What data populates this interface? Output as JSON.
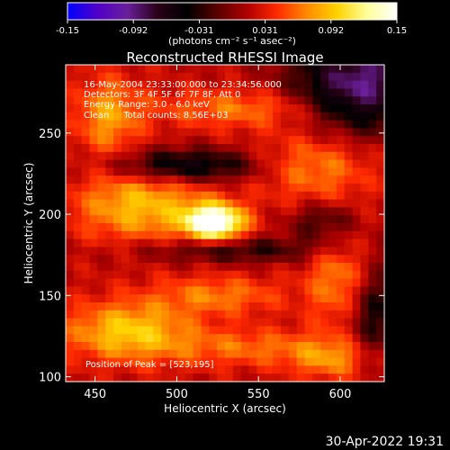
{
  "colorbar": {
    "ticks": [
      "-0.15",
      "-0.092",
      "-0.031",
      "0.031",
      "0.092",
      "0.15"
    ],
    "unit_label": "(photons cm⁻² s⁻¹ asec⁻²)",
    "range": [
      -0.15,
      0.15
    ],
    "colormap": [
      "#0000ff",
      "#5000c8",
      "#6a1f9a",
      "#2a0018",
      "#000000",
      "#5a0000",
      "#b00000",
      "#ff2a00",
      "#ff8a00",
      "#ffd200",
      "#ffff9a",
      "#ffffff"
    ]
  },
  "plot": {
    "title": "Reconstructed RHESSI Image",
    "info_lines": [
      "16-May-2004 23:33:00.000 to 23:34:56.000",
      "Detectors: 3F 4F 5F 6F 7F 8F, Att 0",
      "Energy Range: 3.0 - 6.0 keV",
      "Clean     Total counts: 8.56E+03"
    ],
    "peak_label": "Position of Peak = [523,195]",
    "footer_date": "30-Apr-2022 19:31"
  },
  "chart_data": {
    "type": "heatmap",
    "title": "Reconstructed RHESSI Image",
    "xlabel": "Heliocentric X (arcsec)",
    "ylabel": "Heliocentric Y (arcsec)",
    "xlim": [
      432,
      627
    ],
    "ylim": [
      97,
      292
    ],
    "x_ticks": [
      450,
      500,
      550,
      600
    ],
    "y_ticks": [
      100,
      150,
      200,
      250
    ],
    "x_tick_labels": [
      "450",
      "500",
      "550",
      "600"
    ],
    "y_tick_labels": [
      "100",
      "150",
      "200",
      "250"
    ],
    "value_range": [
      -0.15,
      0.15
    ],
    "peak_position": [
      523,
      195
    ],
    "features": [
      {
        "x": 523,
        "y": 195,
        "rx": 18,
        "ry": 11,
        "value": 0.15
      },
      {
        "x": 478,
        "y": 205,
        "rx": 40,
        "ry": 22,
        "value": 0.07
      },
      {
        "x": 585,
        "y": 230,
        "rx": 35,
        "ry": 22,
        "value": 0.05
      },
      {
        "x": 540,
        "y": 265,
        "rx": 55,
        "ry": 12,
        "value": 0.045
      },
      {
        "x": 470,
        "y": 128,
        "rx": 38,
        "ry": 18,
        "value": 0.075
      },
      {
        "x": 600,
        "y": 160,
        "rx": 20,
        "ry": 30,
        "value": 0.05
      },
      {
        "x": 525,
        "y": 150,
        "rx": 40,
        "ry": 12,
        "value": 0.045
      },
      {
        "x": 545,
        "y": 118,
        "rx": 55,
        "ry": 12,
        "value": 0.04
      },
      {
        "x": 595,
        "y": 110,
        "rx": 25,
        "ry": 12,
        "value": 0.045
      },
      {
        "x": 458,
        "y": 260,
        "rx": 20,
        "ry": 25,
        "value": 0.055
      },
      {
        "x": 505,
        "y": 230,
        "rx": 45,
        "ry": 10,
        "value": -0.08
      },
      {
        "x": 535,
        "y": 178,
        "rx": 60,
        "ry": 8,
        "value": -0.05
      },
      {
        "x": 612,
        "y": 280,
        "rx": 40,
        "ry": 30,
        "value": -0.11
      },
      {
        "x": 590,
        "y": 195,
        "rx": 20,
        "ry": 12,
        "value": -0.05
      },
      {
        "x": 620,
        "y": 140,
        "rx": 15,
        "ry": 30,
        "value": -0.06
      }
    ]
  }
}
